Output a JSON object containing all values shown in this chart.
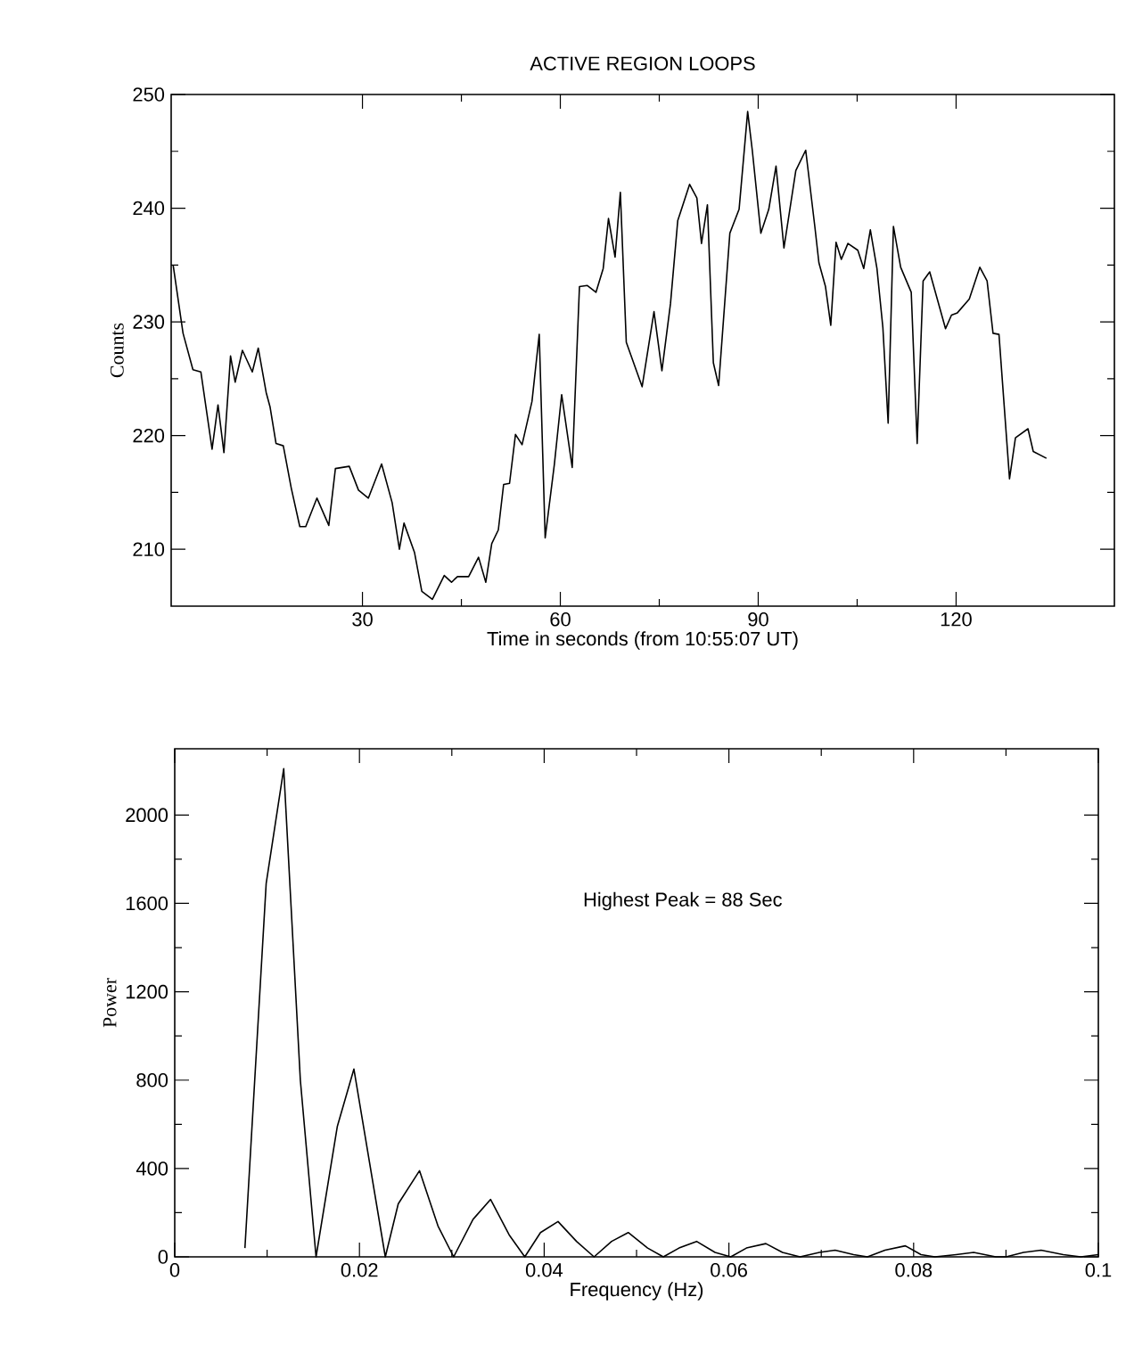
{
  "chart_data": [
    {
      "type": "line",
      "title": "ACTIVE REGION LOOPS",
      "xlabel": "Time in seconds (from 10:55:07 UT)",
      "ylabel": "Counts",
      "color": "#000000",
      "xlim": [
        1,
        144
      ],
      "ylim": [
        205,
        250
      ],
      "xticks": [
        30,
        60,
        90,
        120
      ],
      "yticks": [
        210,
        220,
        230,
        240,
        250
      ],
      "x": [
        1.3,
        2.8,
        4.3,
        5.5,
        7.2,
        8.1,
        9.0,
        10.0,
        10.7,
        11.8,
        13.3,
        14.2,
        15.4,
        16.0,
        16.9,
        18.0,
        19.2,
        20.5,
        21.4,
        23.1,
        24.9,
        25.9,
        28.0,
        29.4,
        30.9,
        32.9,
        34.5,
        35.6,
        36.3,
        37.9,
        39.0,
        40.6,
        42.4,
        43.5,
        44.4,
        46.1,
        47.6,
        48.7,
        49.6,
        50.6,
        51.4,
        52.3,
        53.2,
        54.2,
        55.7,
        56.8,
        57.7,
        59.1,
        60.2,
        61.8,
        62.9,
        64.1,
        65.4,
        66.5,
        67.3,
        68.3,
        69.1,
        70.0,
        72.4,
        74.2,
        75.4,
        76.7,
        77.8,
        79.6,
        80.7,
        81.4,
        82.3,
        83.2,
        84.0,
        85.7,
        87.1,
        88.4,
        89.1,
        90.4,
        91.6,
        92.7,
        93.9,
        95.7,
        97.2,
        98.6,
        99.2,
        100.2,
        101.0,
        101.8,
        102.6,
        103.6,
        105.1,
        106.0,
        107.0,
        108.0,
        108.9,
        109.7,
        110.5,
        111.6,
        113.2,
        114.1,
        115.0,
        116.0,
        118.4,
        119.3,
        120.2,
        122.0,
        123.6,
        124.7,
        125.6,
        126.5,
        128.1,
        129.0,
        130.9,
        131.7,
        133.7
      ],
      "values": [
        235.0,
        229.0,
        225.8,
        225.6,
        218.8,
        222.7,
        218.5,
        227.0,
        224.7,
        227.5,
        225.6,
        227.7,
        223.8,
        222.5,
        219.3,
        219.1,
        215.4,
        212.0,
        212.0,
        214.5,
        212.1,
        217.1,
        217.3,
        215.2,
        214.5,
        217.5,
        214.1,
        210.0,
        212.3,
        209.7,
        206.3,
        205.6,
        207.7,
        207.1,
        207.6,
        207.6,
        209.3,
        207.1,
        210.5,
        211.7,
        215.7,
        215.8,
        220.1,
        219.2,
        223.0,
        228.9,
        211.0,
        217.5,
        223.6,
        217.2,
        233.1,
        233.2,
        232.6,
        234.7,
        239.1,
        235.7,
        241.4,
        228.2,
        224.3,
        230.9,
        225.7,
        231.6,
        238.9,
        242.1,
        240.9,
        236.9,
        240.3,
        226.4,
        224.4,
        237.8,
        239.9,
        248.5,
        245.1,
        237.8,
        239.9,
        243.7,
        236.5,
        243.3,
        245.1,
        238.3,
        235.2,
        233.1,
        229.7,
        237.0,
        235.5,
        236.9,
        236.3,
        234.7,
        238.1,
        234.7,
        229.5,
        221.1,
        238.4,
        234.8,
        232.6,
        219.3,
        233.6,
        234.4,
        229.4,
        230.6,
        230.8,
        232.0,
        234.8,
        233.6,
        229.0,
        228.9,
        216.2,
        219.8,
        220.6,
        218.6,
        218.0
      ]
    },
    {
      "type": "line",
      "xlabel": "Frequency (Hz)",
      "ylabel": "Power",
      "color": "#000000",
      "xlim": [
        0,
        0.1
      ],
      "ylim": [
        0,
        2300
      ],
      "xticks": [
        0,
        0.02,
        0.04,
        0.06,
        0.08,
        0.1
      ],
      "yticks": [
        0,
        400,
        800,
        1200,
        1600,
        2000
      ],
      "annotations": [
        "Highest Peak = 88 Sec"
      ],
      "x": [
        0.0076,
        0.0099,
        0.0118,
        0.0136,
        0.0153,
        0.0176,
        0.0194,
        0.0228,
        0.0242,
        0.0265,
        0.0285,
        0.0302,
        0.0323,
        0.0342,
        0.0362,
        0.0379,
        0.0396,
        0.0415,
        0.0435,
        0.0454,
        0.0473,
        0.0491,
        0.0512,
        0.0529,
        0.0546,
        0.0565,
        0.0585,
        0.0602,
        0.0619,
        0.064,
        0.0658,
        0.0677,
        0.0698,
        0.0715,
        0.0735,
        0.075,
        0.0769,
        0.0791,
        0.0808,
        0.0823,
        0.0846,
        0.0865,
        0.0889,
        0.09,
        0.0919,
        0.0938,
        0.0962,
        0.0981,
        0.1
      ],
      "values": [
        40,
        1690,
        2210,
        800,
        0,
        590,
        850,
        0,
        240,
        390,
        140,
        0,
        170,
        260,
        100,
        0,
        110,
        160,
        70,
        0,
        70,
        110,
        40,
        0,
        40,
        70,
        20,
        0,
        40,
        60,
        20,
        0,
        20,
        30,
        10,
        0,
        30,
        50,
        10,
        0,
        10,
        20,
        0,
        0,
        20,
        30,
        10,
        0,
        10
      ]
    }
  ]
}
